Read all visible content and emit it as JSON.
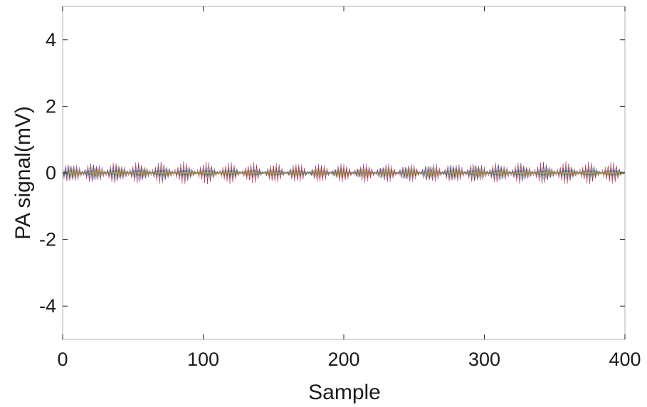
{
  "chart_data": {
    "type": "line",
    "title": "",
    "xlabel": "Sample",
    "ylabel": "PA signal(mV)",
    "xlim": [
      0,
      400
    ],
    "ylim": [
      -5,
      5
    ],
    "x_ticks": [
      0,
      100,
      200,
      300,
      400
    ],
    "x_tick_labels": [
      "0",
      "100",
      "200",
      "300",
      "400"
    ],
    "y_ticks": [
      -4,
      -2,
      0,
      2,
      4
    ],
    "y_tick_labels": [
      "-4",
      "-2",
      "0",
      "2",
      "4"
    ],
    "grid": false,
    "legend": "none",
    "num_traces": 24,
    "samples": 400,
    "envelope_max_abs": 0.4,
    "envelope_period": 16,
    "series_colors": [
      "#0072BD",
      "#D95319",
      "#EDB120",
      "#7E2F8E",
      "#77AC30",
      "#4DBEEE",
      "#A2142F"
    ],
    "axes_color": "#262626",
    "box_color": "#bfbfbf"
  }
}
